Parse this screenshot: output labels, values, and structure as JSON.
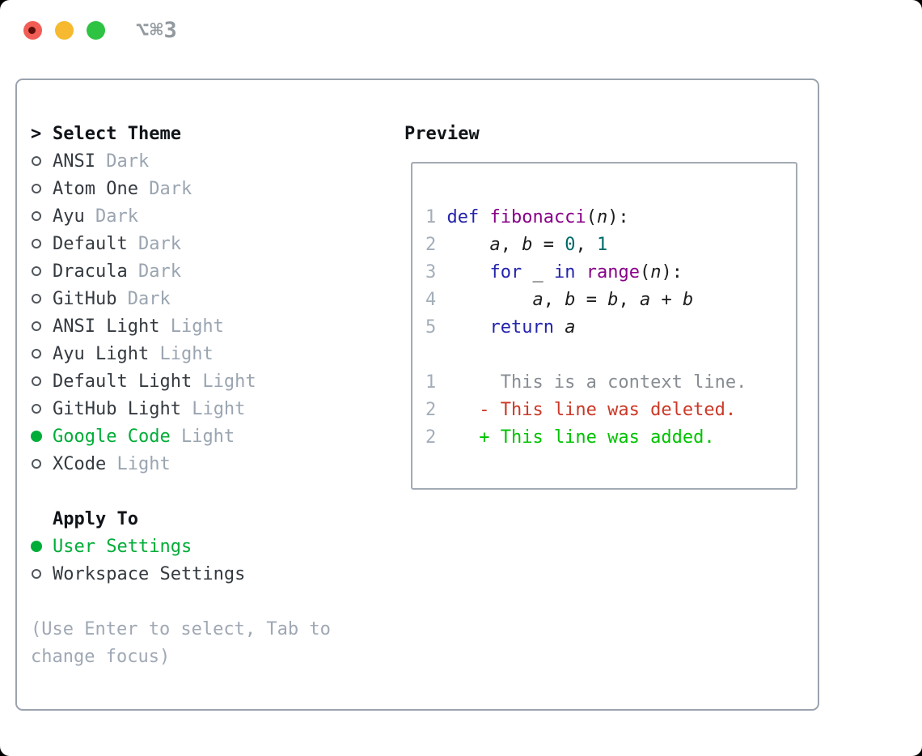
{
  "titlebar": {
    "hotkey": "⌥⌘3",
    "traffic_lights": [
      "close",
      "minimize",
      "zoom"
    ]
  },
  "colors": {
    "accent_green": "#00ad38",
    "added_green": "#00c300",
    "deleted_red": "#cb3827",
    "keyword_blue": "#2424ac",
    "function_purple": "#880088",
    "number_teal": "#006969",
    "variant_gray": "#9aa5b1",
    "frame_border": "#9aa3ae"
  },
  "theme_panel": {
    "header_prefix": ">",
    "header": "Select Theme",
    "themes": [
      {
        "name": "ANSI",
        "variant": "Dark",
        "selected": false
      },
      {
        "name": "Atom One",
        "variant": "Dark",
        "selected": false
      },
      {
        "name": "Ayu",
        "variant": "Dark",
        "selected": false
      },
      {
        "name": "Default",
        "variant": "Dark",
        "selected": false
      },
      {
        "name": "Dracula",
        "variant": "Dark",
        "selected": false
      },
      {
        "name": "GitHub",
        "variant": "Dark",
        "selected": false
      },
      {
        "name": "ANSI Light",
        "variant": "Light",
        "selected": false
      },
      {
        "name": "Ayu Light",
        "variant": "Light",
        "selected": false
      },
      {
        "name": "Default Light",
        "variant": "Light",
        "selected": false
      },
      {
        "name": "GitHub Light",
        "variant": "Light",
        "selected": false
      },
      {
        "name": "Google Code",
        "variant": "Light",
        "selected": true
      },
      {
        "name": "XCode",
        "variant": "Light",
        "selected": false
      }
    ]
  },
  "apply_panel": {
    "header": "Apply To",
    "options": [
      {
        "label": "User Settings",
        "selected": true
      },
      {
        "label": "Workspace Settings",
        "selected": false
      }
    ]
  },
  "help": {
    "lines": [
      "(Use Enter to select, Tab to",
      "change focus)"
    ]
  },
  "preview": {
    "header": "Preview",
    "rows": [
      {
        "num": "1",
        "tokens": [
          {
            "t": "def ",
            "c": "kw"
          },
          {
            "t": "fibonacci",
            "c": "fn"
          },
          {
            "t": "(",
            "c": "pl"
          },
          {
            "t": "n",
            "c": "var"
          },
          {
            "t": "):",
            "c": "pl"
          }
        ]
      },
      {
        "num": "2",
        "tokens": [
          {
            "t": "    ",
            "c": "pl"
          },
          {
            "t": "a",
            "c": "var"
          },
          {
            "t": ", ",
            "c": "pl"
          },
          {
            "t": "b",
            "c": "var"
          },
          {
            "t": " = ",
            "c": "pl"
          },
          {
            "t": "0",
            "c": "num"
          },
          {
            "t": ", ",
            "c": "pl"
          },
          {
            "t": "1",
            "c": "num"
          }
        ]
      },
      {
        "num": "3",
        "tokens": [
          {
            "t": "    ",
            "c": "pl"
          },
          {
            "t": "for",
            "c": "kw"
          },
          {
            "t": " _ ",
            "c": "pl"
          },
          {
            "t": "in",
            "c": "kw"
          },
          {
            "t": " ",
            "c": "pl"
          },
          {
            "t": "range",
            "c": "fn"
          },
          {
            "t": "(",
            "c": "pl"
          },
          {
            "t": "n",
            "c": "var"
          },
          {
            "t": "):",
            "c": "pl"
          }
        ]
      },
      {
        "num": "4",
        "tokens": [
          {
            "t": "        ",
            "c": "pl"
          },
          {
            "t": "a",
            "c": "var"
          },
          {
            "t": ", ",
            "c": "pl"
          },
          {
            "t": "b",
            "c": "var"
          },
          {
            "t": " = ",
            "c": "pl"
          },
          {
            "t": "b",
            "c": "var"
          },
          {
            "t": ", ",
            "c": "pl"
          },
          {
            "t": "a",
            "c": "var"
          },
          {
            "t": " + ",
            "c": "pl"
          },
          {
            "t": "b",
            "c": "var"
          }
        ]
      },
      {
        "num": "5",
        "tokens": [
          {
            "t": "    ",
            "c": "pl"
          },
          {
            "t": "return",
            "c": "kw"
          },
          {
            "t": " ",
            "c": "pl"
          },
          {
            "t": "a",
            "c": "var"
          }
        ]
      },
      {
        "num": "",
        "tokens": []
      },
      {
        "num": "1",
        "tokens": [
          {
            "t": "     This is a context line.",
            "c": "ctx"
          }
        ]
      },
      {
        "num": "2",
        "tokens": [
          {
            "t": "   - This line was deleted.",
            "c": "del"
          }
        ]
      },
      {
        "num": "2",
        "tokens": [
          {
            "t": "   + This line was added.",
            "c": "add"
          }
        ]
      }
    ]
  }
}
